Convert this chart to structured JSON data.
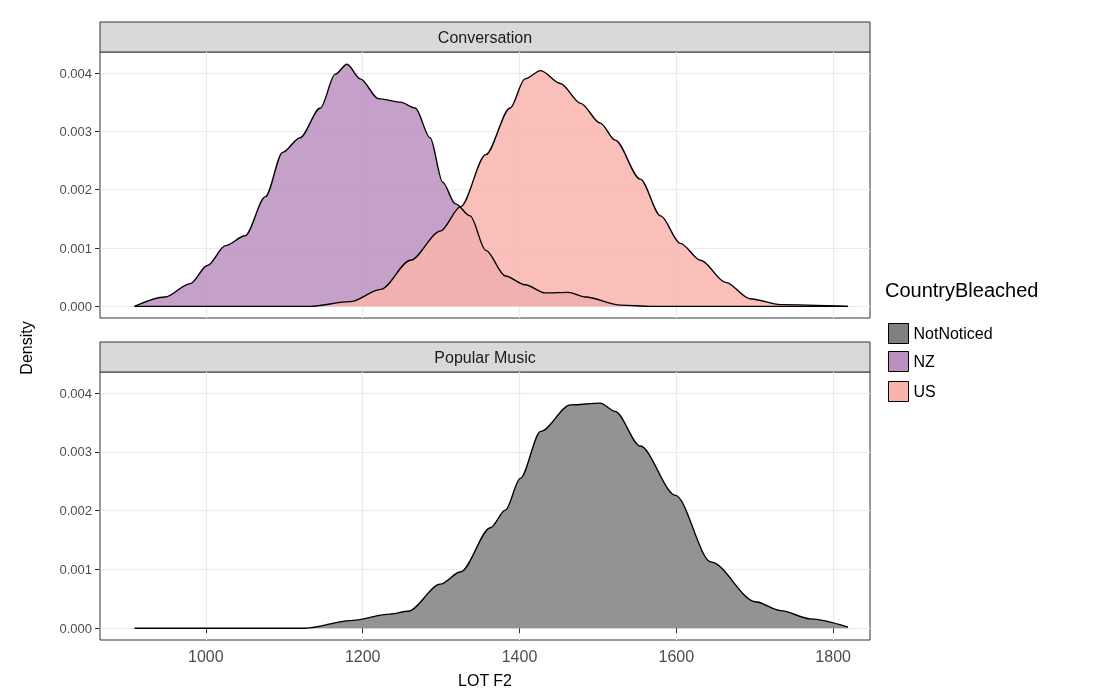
{
  "chart_data": [
    {
      "type": "area",
      "title": "Conversation",
      "xlim": [
        865,
        1847
      ],
      "xticks": [
        1000,
        1200,
        1400,
        1600,
        1800
      ],
      "ylim": [
        -0.0002,
        0.00436
      ],
      "yticks": [
        {
          "value": 0,
          "label": "0.000"
        },
        {
          "value": 0.001,
          "label": "0.001"
        },
        {
          "value": 0.002,
          "label": "0.002"
        },
        {
          "value": 0.003,
          "label": "0.003"
        },
        {
          "value": 0.004,
          "label": "0.004"
        }
      ],
      "grid": true,
      "legend": "right",
      "tick_labels": "y",
      "series": [
        {
          "name": "NZ",
          "color": "#bb8fc0",
          "x": [
            909,
            948,
            980,
            1002,
            1025,
            1050,
            1076,
            1098,
            1120,
            1146,
            1165,
            1180,
            1197,
            1220,
            1248,
            1267,
            1286,
            1302,
            1318,
            1337,
            1357,
            1382,
            1407,
            1433,
            1462,
            1484,
            1529,
            1567,
            1819
          ],
          "values": [
            0,
            0.00016,
            0.00039,
            0.0007,
            0.00104,
            0.00121,
            0.00188,
            0.00264,
            0.00289,
            0.0034,
            0.00398,
            0.00415,
            0.0039,
            0.00356,
            0.0035,
            0.0034,
            0.00289,
            0.00213,
            0.00176,
            0.00155,
            0.00096,
            0.00052,
            0.00037,
            0.00023,
            0.00024,
            0.00016,
            2e-05,
            0,
            0
          ]
        },
        {
          "name": "US",
          "color": "#f8b4ab",
          "x": [
            909,
            1133,
            1184,
            1223,
            1261,
            1299,
            1325,
            1357,
            1388,
            1407,
            1427,
            1452,
            1478,
            1503,
            1522,
            1554,
            1580,
            1605,
            1631,
            1663,
            1694,
            1733,
            1819
          ],
          "values": [
            0,
            0,
            8e-05,
            0.00029,
            0.00079,
            0.00129,
            0.00171,
            0.0026,
            0.0034,
            0.0039,
            0.00404,
            0.00382,
            0.00348,
            0.00314,
            0.00285,
            0.00218,
            0.00155,
            0.00108,
            0.00079,
            0.00041,
            0.00013,
            3e-05,
            0
          ]
        }
      ]
    },
    {
      "type": "area",
      "title": "Popular Music",
      "xlabel": "LOT F2",
      "ylabel": "Density",
      "legend_title": "CountryBleached",
      "xlim": [
        865,
        1847
      ],
      "xticks": [
        1000,
        1200,
        1400,
        1600,
        1800
      ],
      "ylim": [
        -0.0002,
        0.00436
      ],
      "yticks": [
        {
          "value": 0,
          "label": "0.000"
        },
        {
          "value": 0.001,
          "label": "0.001"
        },
        {
          "value": 0.002,
          "label": "0.002"
        },
        {
          "value": 0.003,
          "label": "0.003"
        },
        {
          "value": 0.004,
          "label": "0.004"
        }
      ],
      "grid": true,
      "legend": "right",
      "series": [
        {
          "name": "NotNoticed",
          "color": "#808080",
          "x": [
            909,
            1127,
            1184,
            1235,
            1258,
            1299,
            1325,
            1363,
            1382,
            1401,
            1427,
            1465,
            1503,
            1522,
            1554,
            1599,
            1644,
            1701,
            1733,
            1771,
            1819
          ],
          "values": [
            0,
            0,
            0.00013,
            0.00024,
            0.00029,
            0.00075,
            0.00096,
            0.00171,
            0.00201,
            0.00255,
            0.00335,
            0.0038,
            0.00383,
            0.00369,
            0.0031,
            0.00226,
            0.00113,
            0.00045,
            0.0003,
            0.00016,
            2e-05
          ]
        }
      ]
    }
  ]
}
